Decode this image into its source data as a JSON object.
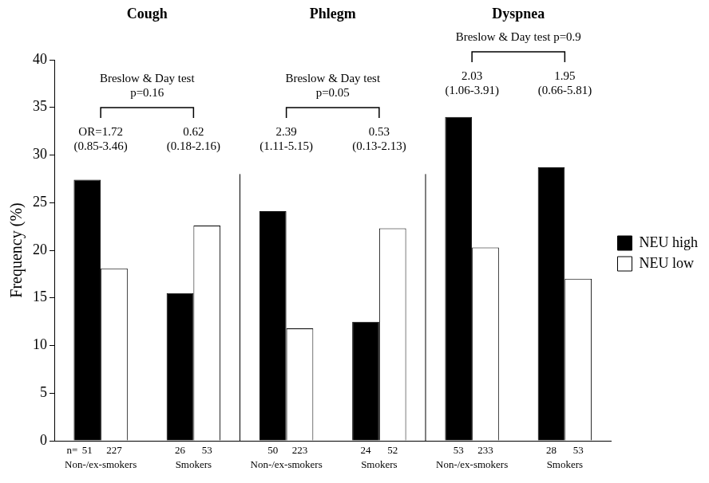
{
  "chart_data": {
    "type": "bar",
    "y_label": "Frequency (%)",
    "ylim": [
      0,
      40
    ],
    "yticks": [
      0,
      5,
      10,
      15,
      20,
      25,
      30,
      35,
      40
    ],
    "grid": false,
    "legend": "right",
    "categories": [
      "Non-/ex-smokers",
      "Smokers",
      "Non-/ex-smokers",
      "Smokers",
      "Non-/ex-smokers",
      "Smokers"
    ],
    "series": [
      {
        "name": "NEU high",
        "color": "#000000",
        "values": [
          27.4,
          15.5,
          24.1,
          12.5,
          34.0,
          28.7
        ],
        "n": [
          51,
          26,
          50,
          24,
          53,
          28
        ]
      },
      {
        "name": "NEU low",
        "color": "#ffffff",
        "values": [
          18.1,
          22.6,
          11.8,
          22.3,
          20.3,
          17.0
        ],
        "n": [
          227,
          53,
          223,
          52,
          233,
          53
        ]
      }
    ],
    "n_label": "n=",
    "panels": [
      {
        "title": "Cough",
        "test_lines": [
          "Breslow & Day test",
          "p=0.16"
        ],
        "odds_ratios": [
          {
            "label": "OR=1.72",
            "ci_label": "(0.85-3.46)"
          },
          {
            "label": "0.62",
            "ci_label": "(0.18-2.16)"
          }
        ]
      },
      {
        "title": "Phlegm",
        "test_lines": [
          "Breslow & Day test",
          "p=0.05"
        ],
        "odds_ratios": [
          {
            "label": "2.39",
            "ci_label": "(1.11-5.15)"
          },
          {
            "label": "0.53",
            "ci_label": "(0.13-2.13)"
          }
        ]
      },
      {
        "title": "Dyspnea",
        "test_lines": [
          "Breslow & Day test p=0.9"
        ],
        "odds_ratios": [
          {
            "label": "2.03",
            "ci_label": "(1.06-3.91)"
          },
          {
            "label": "1.95",
            "ci_label": "(0.66-5.81)"
          }
        ]
      }
    ]
  }
}
